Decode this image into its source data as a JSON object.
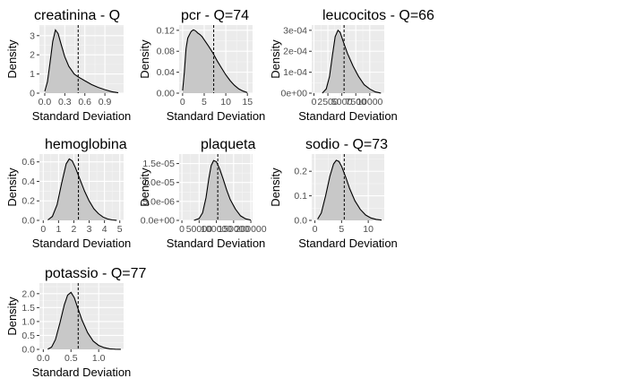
{
  "chart_data": [
    {
      "type": "area",
      "title": "creatinina - Q",
      "xlabel": "Standard Deviation",
      "ylabel": "Density",
      "xlim": [
        -0.08,
        1.18
      ],
      "ylim": [
        0,
        3.55
      ],
      "xticks": [
        0.0,
        0.3,
        0.6,
        0.9
      ],
      "xtick_labels": [
        "0.0",
        "0.3",
        "0.6",
        "0.9"
      ],
      "yticks": [
        0,
        1,
        2,
        3
      ],
      "ytick_labels": [
        "0",
        "1",
        "2",
        "3"
      ],
      "vline": 0.5,
      "x": [
        0.0,
        0.04,
        0.08,
        0.12,
        0.16,
        0.2,
        0.24,
        0.3,
        0.36,
        0.44,
        0.5,
        0.6,
        0.7,
        0.8,
        0.9,
        1.0,
        1.1
      ],
      "y": [
        0.1,
        0.6,
        1.6,
        2.7,
        3.3,
        3.1,
        2.6,
        1.9,
        1.4,
        1.0,
        0.85,
        0.65,
        0.45,
        0.3,
        0.18,
        0.08,
        0.02
      ]
    },
    {
      "type": "area",
      "title": "pcr - Q=74",
      "xlabel": "Standard Deviation",
      "ylabel": "Density",
      "xlim": [
        -0.8,
        16.2
      ],
      "ylim": [
        0,
        0.13
      ],
      "xticks": [
        0,
        5,
        10,
        15
      ],
      "xtick_labels": [
        "0",
        "5",
        "10",
        "15"
      ],
      "yticks": [
        0.0,
        0.04,
        0.08,
        0.12
      ],
      "ytick_labels": [
        "0.00",
        "0.04",
        "0.08",
        "0.12"
      ],
      "vline": 7.2,
      "x": [
        0,
        0.4,
        0.8,
        1.2,
        1.6,
        2,
        2.5,
        3,
        3.5,
        4,
        4.5,
        5,
        5.5,
        6,
        7,
        8,
        9,
        10,
        11,
        12,
        13,
        14,
        15
      ],
      "y": [
        0.005,
        0.04,
        0.085,
        0.105,
        0.112,
        0.118,
        0.121,
        0.119,
        0.115,
        0.112,
        0.108,
        0.102,
        0.096,
        0.09,
        0.077,
        0.062,
        0.048,
        0.035,
        0.024,
        0.015,
        0.008,
        0.004,
        0.001
      ]
    },
    {
      "type": "area",
      "title": "leucocitos - Q=66",
      "xlabel": "Standard Deviation",
      "ylabel": "Density",
      "xlim": [
        -400,
        12600
      ],
      "ylim": [
        0,
        0.000325
      ],
      "xticks": [
        0,
        2500,
        5000,
        7500,
        10000
      ],
      "xtick_labels": [
        "0",
        "2500",
        "5000",
        "7500",
        "10000"
      ],
      "yticks": [
        0,
        0.0001,
        0.0002,
        0.0003
      ],
      "ytick_labels": [
        "0e+00",
        "1e-04",
        "2e-04",
        "3e-04"
      ],
      "vline": 5400,
      "x": [
        1500,
        2200,
        2800,
        3300,
        3800,
        4300,
        4700,
        5200,
        6000,
        7000,
        8000,
        9000,
        10000,
        11000,
        12000
      ],
      "y": [
        0.0,
        2e-05,
        8e-05,
        0.00018,
        0.00027,
        0.0003,
        0.00029,
        0.00025,
        0.00019,
        0.00013,
        8e-05,
        4e-05,
        2e-05,
        6e-06,
        5e-07
      ]
    },
    {
      "type": "area",
      "title": "hemoglobina",
      "xlabel": "Standard Deviation",
      "ylabel": "Density",
      "xlim": [
        -0.25,
        5.25
      ],
      "ylim": [
        0,
        0.68
      ],
      "xticks": [
        0,
        1,
        2,
        3,
        4,
        5
      ],
      "xtick_labels": [
        "0",
        "1",
        "2",
        "3",
        "4",
        "5"
      ],
      "yticks": [
        0.0,
        0.2,
        0.4,
        0.6
      ],
      "ytick_labels": [
        "0.0",
        "0.2",
        "0.4",
        "0.6"
      ],
      "vline": 2.3,
      "x": [
        0.3,
        0.6,
        0.9,
        1.2,
        1.5,
        1.7,
        1.9,
        2.1,
        2.4,
        2.7,
        3.0,
        3.3,
        3.6,
        3.9,
        4.2,
        4.5,
        4.8
      ],
      "y": [
        0.005,
        0.04,
        0.16,
        0.38,
        0.58,
        0.63,
        0.61,
        0.54,
        0.42,
        0.3,
        0.2,
        0.12,
        0.07,
        0.035,
        0.015,
        0.005,
        0.001
      ]
    },
    {
      "type": "area",
      "title": "plaqueta",
      "xlabel": "Standard Deviation",
      "ylabel": "Density",
      "xlim": [
        -8000,
        205000
      ],
      "ylim": [
        0,
        1.75e-05
      ],
      "xticks": [
        0,
        50000,
        100000,
        150000,
        200000
      ],
      "xtick_labels": [
        "0",
        "50000",
        "100000",
        "150000",
        "200000"
      ],
      "yticks": [
        0,
        5e-06,
        1e-05,
        1.5e-05
      ],
      "ytick_labels": [
        "0.0e+00",
        "5.0e-06",
        "1.0e-05",
        "1.5e-05"
      ],
      "vline": 104000,
      "x": [
        35000,
        50000,
        60000,
        70000,
        78000,
        85000,
        92000,
        100000,
        110000,
        120000,
        130000,
        140000,
        155000,
        170000,
        185000,
        200000
      ],
      "y": [
        0.0,
        5e-07,
        2e-06,
        6e-06,
        1.1e-05,
        1.45e-05,
        1.58e-05,
        1.55e-05,
        1.35e-05,
        1.08e-05,
        8e-06,
        5.5e-06,
        3e-06,
        1.2e-06,
        4e-07,
        1e-07
      ]
    },
    {
      "type": "area",
      "title": "sodio - Q=73",
      "xlabel": "Standard Deviation",
      "ylabel": "Density",
      "xlim": [
        -0.6,
        13
      ],
      "ylim": [
        0,
        0.27
      ],
      "xticks": [
        0,
        5,
        10
      ],
      "xtick_labels": [
        "0",
        "5",
        "10"
      ],
      "yticks": [
        0.0,
        0.1,
        0.2
      ],
      "ytick_labels": [
        "0.0",
        "0.1",
        "0.2"
      ],
      "vline": 5.5,
      "x": [
        0.5,
        1.2,
        2.0,
        2.8,
        3.5,
        4.0,
        4.5,
        5.0,
        5.8,
        6.5,
        7.5,
        8.5,
        9.5,
        10.5,
        11.5,
        12.5
      ],
      "y": [
        0.005,
        0.03,
        0.1,
        0.18,
        0.23,
        0.245,
        0.24,
        0.22,
        0.175,
        0.13,
        0.08,
        0.045,
        0.022,
        0.01,
        0.004,
        0.001
      ]
    },
    {
      "type": "area",
      "title": "potassio - Q=77",
      "xlabel": "Standard Deviation",
      "ylabel": "Density",
      "xlim": [
        -0.07,
        1.45
      ],
      "ylim": [
        0,
        2.38
      ],
      "xticks": [
        0.0,
        0.5,
        1.0
      ],
      "xtick_labels": [
        "0.0",
        "0.5",
        "1.0"
      ],
      "yticks": [
        0.0,
        0.5,
        1.0,
        1.5,
        2.0
      ],
      "ytick_labels": [
        "0.0",
        "0.5",
        "1.0",
        "1.5",
        "2.0"
      ],
      "vline": 0.63,
      "x": [
        0.08,
        0.15,
        0.22,
        0.3,
        0.38,
        0.44,
        0.5,
        0.56,
        0.62,
        0.7,
        0.8,
        0.9,
        1.0,
        1.1,
        1.2,
        1.3,
        1.4
      ],
      "y": [
        0.01,
        0.08,
        0.35,
        0.95,
        1.6,
        1.95,
        2.05,
        1.85,
        1.5,
        1.05,
        0.6,
        0.3,
        0.14,
        0.06,
        0.02,
        0.008,
        0.002
      ]
    }
  ]
}
